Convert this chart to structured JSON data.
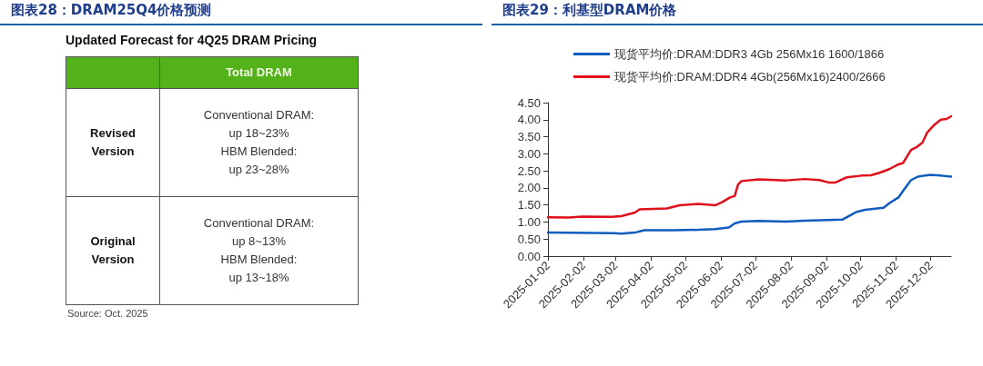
{
  "chart_data": [
    {
      "type": "other",
      "title": "图表28：DRAM25Q4价格预测",
      "subtitle": "Updated Forecast for 4Q25 DRAM Pricing",
      "annotations": [
        "Total DRAM",
        "Revised\nVersion",
        "Conventional DRAM:\nup 18~23%\nHBM Blended:\nup 23~28%",
        "Original\nVersion",
        "Conventional DRAM:\nup 8~13%\nHBM Blended:\nup 13~18%",
        "Source: Oct. 2025"
      ]
    },
    {
      "type": "line",
      "title": "图表29：利基型DRAM价格",
      "legend": "top",
      "xlim": [
        "2025-01-02",
        "2025-12-20"
      ],
      "xticks": [
        "2025-01-02",
        "2025-02-02",
        "2025-03-02",
        "2025-04-02",
        "2025-05-02",
        "2025-06-02",
        "2025-07-02",
        "2025-08-02",
        "2025-09-02",
        "2025-10-02",
        "2025-11-02",
        "2025-12-02"
      ],
      "ylim": [
        0,
        4.5
      ],
      "yticks": [
        {
          "value": 0,
          "label": "0.00"
        },
        {
          "value": 0.5,
          "label": "0.50"
        },
        {
          "value": 1,
          "label": "1.00"
        },
        {
          "value": 1.5,
          "label": "1.50"
        },
        {
          "value": 2,
          "label": "2.00"
        },
        {
          "value": 2.5,
          "label": "2.50"
        },
        {
          "value": 3,
          "label": "3.00"
        },
        {
          "value": 3.5,
          "label": "3.50"
        },
        {
          "value": 4,
          "label": "4.00"
        },
        {
          "value": 4.5,
          "label": "4.50"
        }
      ],
      "grid": false,
      "marker": "none",
      "line_style": "solid",
      "series": [
        {
          "name": "现货平均价:DRAM:DDR3 4Gb 256Mx16 1600/1866",
          "color": "#0f5cbf",
          "x": [
            "2025-01-02",
            "2025-03-01",
            "2025-03-07",
            "2025-03-19",
            "2025-03-27",
            "2025-04-22",
            "2025-05-13",
            "2025-05-28",
            "2025-06-09",
            "2025-06-14",
            "2025-06-20",
            "2025-07-05",
            "2025-07-29",
            "2025-08-14",
            "2025-09-04",
            "2025-09-16",
            "2025-09-28",
            "2025-10-06",
            "2025-10-22",
            "2025-10-27",
            "2025-11-04",
            "2025-11-08",
            "2025-11-15",
            "2025-11-21",
            "2025-12-01",
            "2025-12-11",
            "2025-12-20"
          ],
          "values": [
            0.69,
            0.67,
            0.66,
            0.69,
            0.76,
            0.76,
            0.77,
            0.79,
            0.84,
            0.96,
            1.01,
            1.03,
            1.01,
            1.04,
            1.06,
            1.07,
            1.29,
            1.36,
            1.42,
            1.55,
            1.72,
            1.91,
            2.23,
            2.33,
            2.38,
            2.36,
            2.33
          ]
        },
        {
          "name": "现货平均价:DRAM:DDR4 4Gb(256Mx16)2400/2666",
          "color": "#e0101b",
          "x": [
            "2025-01-02",
            "2025-01-20",
            "2025-02-01",
            "2025-02-27",
            "2025-03-07",
            "2025-03-19",
            "2025-03-23",
            "2025-04-16",
            "2025-04-27",
            "2025-05-13",
            "2025-05-28",
            "2025-06-03",
            "2025-06-10",
            "2025-06-14",
            "2025-06-17",
            "2025-06-20",
            "2025-07-05",
            "2025-07-29",
            "2025-08-14",
            "2025-08-27",
            "2025-09-04",
            "2025-09-10",
            "2025-09-20",
            "2025-10-03",
            "2025-10-11",
            "2025-10-19",
            "2025-10-27",
            "2025-11-04",
            "2025-11-08",
            "2025-11-15",
            "2025-11-20",
            "2025-11-25",
            "2025-11-29",
            "2025-12-05",
            "2025-12-11",
            "2025-12-16",
            "2025-12-20"
          ],
          "values": [
            1.14,
            1.13,
            1.16,
            1.15,
            1.17,
            1.28,
            1.37,
            1.4,
            1.49,
            1.53,
            1.49,
            1.58,
            1.72,
            1.76,
            2.1,
            2.2,
            2.25,
            2.22,
            2.26,
            2.23,
            2.16,
            2.16,
            2.31,
            2.36,
            2.37,
            2.45,
            2.55,
            2.69,
            2.73,
            3.11,
            3.2,
            3.33,
            3.62,
            3.84,
            4.0,
            4.02,
            4.1
          ]
        }
      ]
    }
  ]
}
